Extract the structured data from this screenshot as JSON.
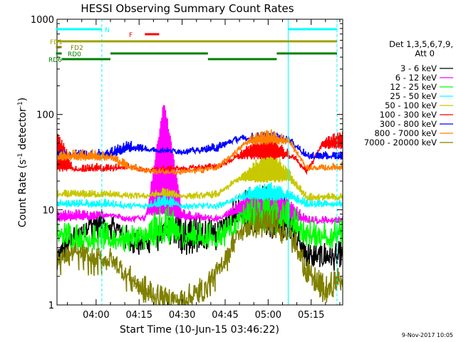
{
  "chart_data": {
    "type": "line",
    "title": "HESSI Observing Summary Count Rates",
    "xlabel": "Start Time (10-Jun-15 03:46:22)",
    "ylabel_main": "Count Rate (s",
    "ylabel_sup1": "-1",
    "ylabel_mid": " detector",
    "ylabel_sup2": "-1",
    "ylabel_end": ")",
    "yscale": "log",
    "xlim": [
      "03:46:22",
      "05:26:00"
    ],
    "ylim": [
      1,
      1000
    ],
    "x_ticks": [
      "04:00",
      "04:15",
      "04:30",
      "04:45",
      "05:00",
      "05:15"
    ],
    "y_ticks": [
      "1",
      "10",
      "100",
      "1000"
    ],
    "legend_header": [
      "Det 1,3,5,6,7,9,",
      "Att 0"
    ],
    "legend_position": "right",
    "timestamp": "9-Nov-2017 10:05",
    "flags": [
      {
        "label": "N",
        "color": "#00ffff",
        "segments": [
          [
            "03:46",
            "04:02"
          ],
          [
            "05:07",
            "05:24"
          ]
        ]
      },
      {
        "label": "F",
        "color": "#ff0000",
        "segments": [
          [
            "04:17",
            "04:22"
          ]
        ]
      },
      {
        "label": "FD1",
        "color": "#a0a000",
        "segments": [
          [
            "03:46",
            "05:24"
          ]
        ]
      },
      {
        "label": "FD2",
        "color": "#808000",
        "segments": [
          [
            "03:46",
            "03:48"
          ]
        ]
      },
      {
        "label": "RD0",
        "color": "#008000",
        "segments": [
          [
            "03:46",
            "03:48"
          ],
          [
            "04:05",
            "04:39"
          ],
          [
            "05:03",
            "05:24"
          ]
        ]
      },
      {
        "label": "RD6",
        "color": "#008000",
        "segments": [
          [
            "03:48",
            "04:05"
          ],
          [
            "04:39",
            "05:03"
          ]
        ]
      }
    ],
    "vlines": {
      "solid": [
        "05:07"
      ],
      "dashed": [
        "04:02",
        "05:24"
      ]
    },
    "series": [
      {
        "name": "3 - 6 keV",
        "color": "#000000",
        "values": [
          [
            3.3,
            2.5
          ],
          [
            5,
            7
          ],
          [
            7.5,
            7
          ],
          [
            7.5,
            6
          ],
          [
            5,
            6
          ],
          [
            4.5,
            5
          ],
          [
            6,
            7
          ],
          [
            7.5,
            4
          ],
          [
            6.5,
            4
          ],
          [
            5.5,
            6
          ],
          [
            11,
            9
          ],
          [
            14,
            7
          ],
          [
            13,
            6
          ],
          [
            10,
            6
          ],
          [
            3.5,
            3
          ],
          [
            3.5,
            3
          ],
          [
            3.5,
            3
          ]
        ]
      },
      {
        "name": "6 - 12 keV",
        "color": "#ff00ff",
        "values": [
          [
            9,
            7.5
          ],
          [
            9.5,
            8
          ],
          [
            9,
            8
          ],
          [
            9,
            9
          ],
          [
            8,
            9
          ],
          [
            8.5,
            9
          ],
          [
            140,
            9
          ],
          [
            10,
            8
          ],
          [
            8.5,
            8
          ],
          [
            8,
            8
          ],
          [
            11,
            9
          ],
          [
            15,
            9
          ],
          [
            16,
            8
          ],
          [
            12,
            8
          ],
          [
            8,
            7.5
          ],
          [
            8,
            7.5
          ],
          [
            8,
            7.5
          ]
        ]
      },
      {
        "name": "12 - 25 keV",
        "color": "#00ff00",
        "values": [
          [
            6,
            5
          ],
          [
            5.5,
            5
          ],
          [
            5.5,
            4.5
          ],
          [
            5.5,
            4.5
          ],
          [
            5,
            5
          ],
          [
            5.5,
            4.5
          ],
          [
            9,
            5
          ],
          [
            6,
            5
          ],
          [
            5.5,
            5
          ],
          [
            5.5,
            5
          ],
          [
            7,
            8
          ],
          [
            12,
            7
          ],
          [
            13,
            7
          ],
          [
            9,
            7
          ],
          [
            6,
            5
          ],
          [
            6,
            5
          ],
          [
            6,
            5
          ]
        ]
      },
      {
        "name": "25 - 50 keV",
        "color": "#00ffff",
        "values": [
          [
            12,
            11
          ],
          [
            12,
            11
          ],
          [
            12,
            11
          ],
          [
            12,
            11
          ],
          [
            11,
            11
          ],
          [
            11,
            11
          ],
          [
            14,
            11
          ],
          [
            11,
            11
          ],
          [
            11,
            11
          ],
          [
            11,
            11
          ],
          [
            13,
            13
          ],
          [
            17,
            13
          ],
          [
            18,
            13
          ],
          [
            15,
            13
          ],
          [
            12,
            11
          ],
          [
            12,
            11
          ],
          [
            12,
            11
          ]
        ]
      },
      {
        "name": "50 - 100 keV",
        "color": "#c8c800",
        "values": [
          [
            15,
            14
          ],
          [
            15,
            14
          ],
          [
            15,
            14
          ],
          [
            15,
            14
          ],
          [
            14,
            14
          ],
          [
            14,
            14
          ],
          [
            16,
            14
          ],
          [
            14,
            14
          ],
          [
            14,
            14
          ],
          [
            15,
            14
          ],
          [
            20,
            20
          ],
          [
            30,
            20
          ],
          [
            40,
            20
          ],
          [
            25,
            20
          ],
          [
            14,
            13
          ],
          [
            14,
            13
          ],
          [
            14,
            13
          ]
        ]
      },
      {
        "name": "100 - 300 keV",
        "color": "#ff0000",
        "values": [
          [
            65,
            26
          ],
          [
            27,
            26
          ],
          [
            29,
            26
          ],
          [
            28,
            26
          ],
          [
            29,
            28
          ],
          [
            26,
            28
          ],
          [
            27,
            28
          ],
          [
            27,
            28
          ],
          [
            28,
            28
          ],
          [
            29,
            28
          ],
          [
            35,
            35
          ],
          [
            50,
            35
          ],
          [
            55,
            35
          ],
          [
            40,
            35
          ],
          [
            25,
            45
          ],
          [
            55,
            45
          ],
          [
            62,
            45
          ]
        ]
      },
      {
        "name": "300 - 800 keV",
        "color": "#0000ff",
        "values": [
          [
            40,
            36
          ],
          [
            40,
            36
          ],
          [
            40,
            36
          ],
          [
            42,
            36
          ],
          [
            50,
            42
          ],
          [
            45,
            42
          ],
          [
            42,
            42
          ],
          [
            41,
            42
          ],
          [
            42,
            42
          ],
          [
            48,
            42
          ],
          [
            55,
            55
          ],
          [
            60,
            55
          ],
          [
            62,
            55
          ],
          [
            55,
            55
          ],
          [
            38,
            35
          ],
          [
            38,
            35
          ],
          [
            38,
            35
          ]
        ]
      },
      {
        "name": "800 - 7000 keV",
        "color": "#ff8000",
        "values": [
          [
            38,
            34
          ],
          [
            40,
            34
          ],
          [
            40,
            34
          ],
          [
            38,
            34
          ],
          [
            30,
            27
          ],
          [
            26,
            27
          ],
          [
            25,
            27
          ],
          [
            25,
            27
          ],
          [
            26,
            27
          ],
          [
            28,
            27
          ],
          [
            40,
            50
          ],
          [
            60,
            50
          ],
          [
            65,
            50
          ],
          [
            55,
            50
          ],
          [
            28,
            27
          ],
          [
            28,
            27
          ],
          [
            30,
            27
          ]
        ]
      },
      {
        "name": "7000 - 20000 keV",
        "color": "#808000",
        "values": [
          [
            3,
            4
          ],
          [
            3.5,
            4
          ],
          [
            3,
            4
          ],
          [
            3,
            4
          ],
          [
            2,
            2
          ],
          [
            1.5,
            1.2
          ],
          [
            1.2,
            1.2
          ],
          [
            1.1,
            1.2
          ],
          [
            1.5,
            1.2
          ],
          [
            2.2,
            2.5
          ],
          [
            5,
            6
          ],
          [
            8,
            6
          ],
          [
            8,
            6
          ],
          [
            6,
            6
          ],
          [
            2.5,
            2
          ],
          [
            1.5,
            1.2
          ],
          [
            2,
            2
          ]
        ]
      }
    ]
  }
}
